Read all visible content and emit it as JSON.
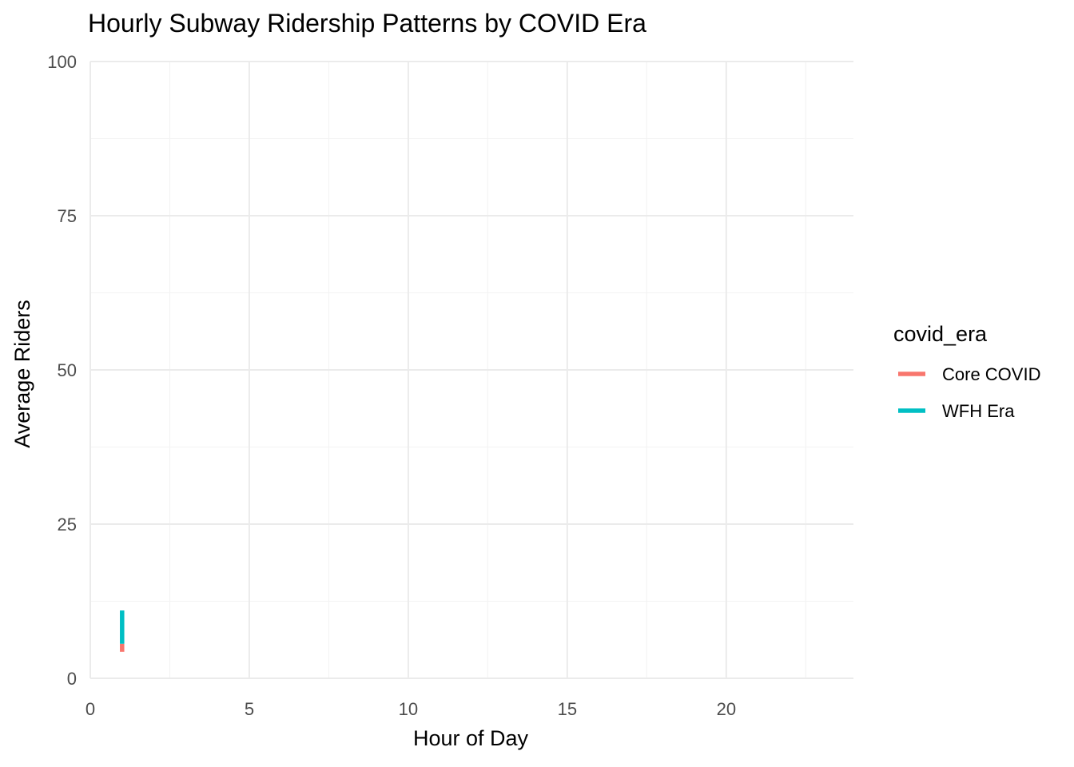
{
  "colors": {
    "background": "#ffffff",
    "grid_major": "#ebebeb",
    "grid_minor": "#f3f3f3",
    "tick_text": "#4d4d4d",
    "text": "#000000"
  },
  "chart_data": {
    "type": "line",
    "title": "Hourly Subway Ridership Patterns by COVID Era",
    "xlabel": "Hour of Day",
    "ylabel": "Average Riders",
    "xlim": [
      0,
      24
    ],
    "ylim": [
      0,
      100
    ],
    "x_ticks": [
      0,
      5,
      10,
      15,
      20
    ],
    "x_tick_labels": [
      "0",
      "5",
      "10",
      "15",
      "20"
    ],
    "y_ticks": [
      0,
      25,
      50,
      75,
      100
    ],
    "y_tick_labels": [
      "0",
      "25",
      "50",
      "75",
      "100"
    ],
    "grid": true,
    "legend": {
      "title": "covid_era",
      "placement": "right"
    },
    "series": [
      {
        "name": "Core COVID",
        "color": "#F8766D",
        "x": [
          1,
          1
        ],
        "y": [
          4.3,
          5.6
        ]
      },
      {
        "name": "WFH Era",
        "color": "#00BFC4",
        "x": [
          1,
          1
        ],
        "y": [
          5.6,
          11.0
        ]
      }
    ]
  }
}
